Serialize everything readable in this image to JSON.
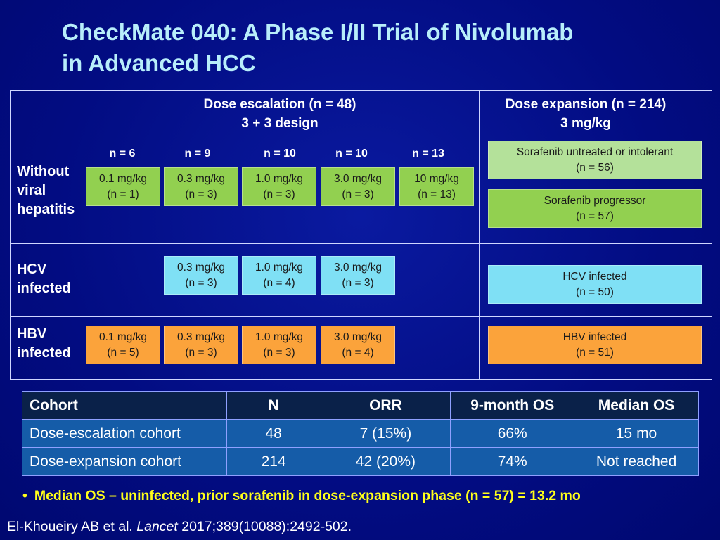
{
  "title": {
    "line1": "CheckMate 040: A Phase I/II Trial of Nivolumab",
    "line2": "in Advanced HCC"
  },
  "diagram": {
    "escalation_header": {
      "line1": "Dose escalation (n = 48)",
      "line2": "3 + 3 design"
    },
    "expansion_header": {
      "line1": "Dose expansion (n = 214)",
      "line2": "3 mg/kg"
    },
    "n_labels": [
      "n = 6",
      "n = 9",
      "n = 10",
      "n = 10",
      "n = 13"
    ],
    "rows": [
      {
        "label": [
          "Without",
          "viral",
          "hepatitis"
        ],
        "escalation_boxes": [
          {
            "dose": "0.1 mg/kg",
            "n": "(n = 1)"
          },
          {
            "dose": "0.3 mg/kg",
            "n": "(n = 3)"
          },
          {
            "dose": "1.0 mg/kg",
            "n": "(n = 3)"
          },
          {
            "dose": "3.0 mg/kg",
            "n": "(n = 3)"
          },
          {
            "dose": "10 mg/kg",
            "n": "(n = 13)"
          }
        ],
        "expansion_boxes": [
          {
            "line1": "Sorafenib untreated or intolerant",
            "line2": "(n = 56)"
          },
          {
            "line1": "Sorafenib progressor",
            "line2": "(n = 57)"
          }
        ]
      },
      {
        "label": [
          "HCV",
          "infected"
        ],
        "escalation_boxes": [
          {
            "dose": "0.3 mg/kg",
            "n": "(n = 3)"
          },
          {
            "dose": "1.0 mg/kg",
            "n": "(n = 4)"
          },
          {
            "dose": "3.0 mg/kg",
            "n": "(n = 3)"
          }
        ],
        "expansion_boxes": [
          {
            "line1": "HCV infected",
            "line2": "(n = 50)"
          }
        ]
      },
      {
        "label": [
          "HBV",
          "infected"
        ],
        "escalation_boxes": [
          {
            "dose": "0.1 mg/kg",
            "n": "(n = 5)"
          },
          {
            "dose": "0.3 mg/kg",
            "n": "(n = 3)"
          },
          {
            "dose": "1.0 mg/kg",
            "n": "(n = 3)"
          },
          {
            "dose": "3.0 mg/kg",
            "n": "(n = 4)"
          }
        ],
        "expansion_boxes": [
          {
            "line1": "HBV infected",
            "line2": "(n = 51)"
          }
        ]
      }
    ],
    "colors": {
      "background": "#020c82",
      "title": "#b8eefa",
      "green": "#92d050",
      "light_green": "#b4e19a",
      "cyan": "#7fe0f5",
      "orange": "#fba33b"
    }
  },
  "table": {
    "headers": [
      "Cohort",
      "N",
      "ORR",
      "9-month OS",
      "Median OS"
    ],
    "rows": [
      [
        "Dose-escalation cohort",
        "48",
        "7 (15%)",
        "66%",
        "15 mo"
      ],
      [
        "Dose-expansion cohort",
        "214",
        "42 (20%)",
        "74%",
        "Not reached"
      ]
    ]
  },
  "bullet": "Median OS – uninfected, prior sorafenib in dose-expansion phase (n = 57) = 13.2 mo",
  "citation": {
    "authors": "El-Khoueiry AB et al.",
    "journal": "Lancet",
    "ref": "2017;389(10088):2492-502."
  }
}
